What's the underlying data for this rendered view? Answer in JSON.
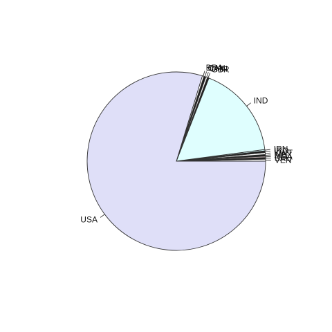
{
  "chart_data": {
    "type": "pie",
    "title": "",
    "direction": "counterclockwise",
    "start": "3 o'clock",
    "slices": [
      {
        "label": "VEN",
        "value": 0.35,
        "color": "#ffffff"
      },
      {
        "label": "SAU",
        "value": 0.3,
        "color": "#1a1a1a"
      },
      {
        "label": "NGA",
        "value": 0.25,
        "color": "#c9b7b7"
      },
      {
        "label": "MEX",
        "value": 0.3,
        "color": "#1a1a1a"
      },
      {
        "label": "KWT",
        "value": 0.35,
        "color": "#ffffff"
      },
      {
        "label": "IRQ",
        "value": 0.3,
        "color": "#1a1a1a"
      },
      {
        "label": "IRN",
        "value": 0.25,
        "color": "#c6e7e9"
      },
      {
        "label": "IND",
        "value": 17.0,
        "color": "#dffefe"
      },
      {
        "label": "GBR",
        "value": 0.3,
        "color": "#1a1a1a"
      },
      {
        "label": "CHN",
        "value": 0.3,
        "color": "#ffffff"
      },
      {
        "label": "CAN",
        "value": 0.35,
        "color": "#1a1a1a"
      },
      {
        "label": "BRA",
        "value": 0.3,
        "color": "#ffffff"
      },
      {
        "label": "USA",
        "value": 79.9,
        "color": "#dfdff8"
      }
    ]
  }
}
